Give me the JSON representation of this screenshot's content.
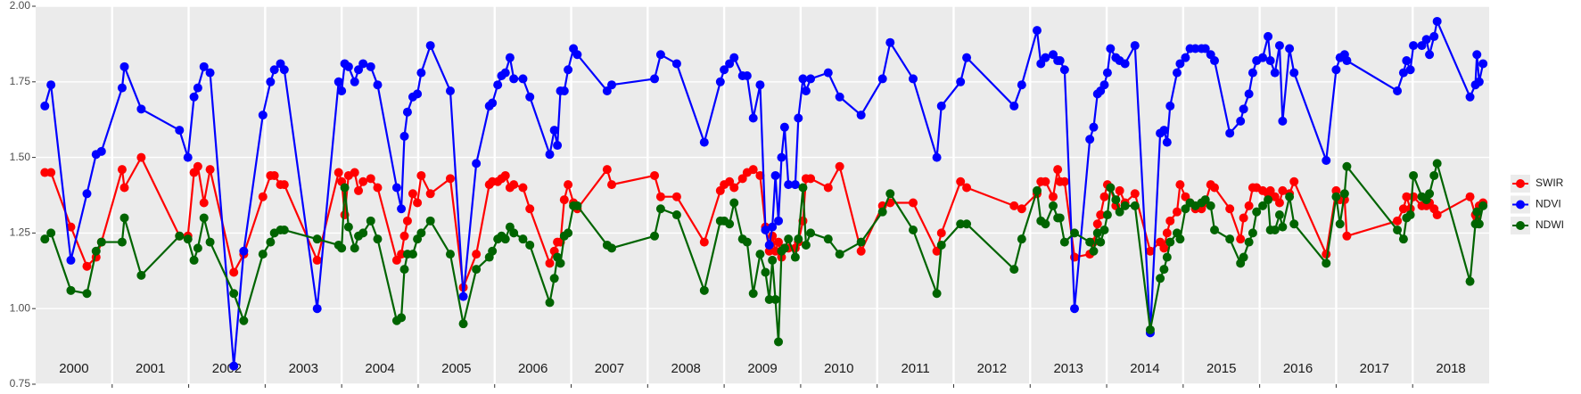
{
  "chart_data": {
    "type": "line",
    "xlim": [
      2000,
      2019
    ],
    "xticks": [
      2001,
      2002,
      2003,
      2004,
      2005,
      2006,
      2007,
      2008,
      2009,
      2010,
      2011,
      2012,
      2013,
      2014,
      2015,
      2016,
      2017,
      2018
    ],
    "year_labels": [
      "2000",
      "2001",
      "2002",
      "2003",
      "2004",
      "2005",
      "2006",
      "2007",
      "2008",
      "2009",
      "2010",
      "2011",
      "2012",
      "2013",
      "2014",
      "2015",
      "2016",
      "2017",
      "2018"
    ],
    "ylim": [
      0.75,
      2.0
    ],
    "yticks": [
      0.75,
      {
        "value": 1.0,
        "label": "1.00"
      },
      1.25,
      {
        "value": 1.5,
        "label": "1.50"
      },
      1.75,
      {
        "value": 2.0,
        "label": "2.00"
      }
    ],
    "grid": true,
    "legend": "right",
    "x": [
      2000.12,
      2000.2,
      2000.46,
      2000.67,
      2000.79,
      2000.86,
      2001.13,
      2001.16,
      2001.38,
      2001.88,
      2001.99,
      2002.07,
      2002.12,
      2002.2,
      2002.28,
      2002.59,
      2002.72,
      2002.97,
      2003.07,
      2003.12,
      2003.2,
      2003.25,
      2003.68,
      2003.96,
      2004.0,
      2004.04,
      2004.09,
      2004.17,
      2004.22,
      2004.28,
      2004.38,
      2004.47,
      2004.72,
      2004.78,
      2004.82,
      2004.86,
      2004.93,
      2004.99,
      2005.04,
      2005.16,
      2005.42,
      2005.59,
      2005.76,
      2005.93,
      2005.97,
      2006.04,
      2006.09,
      2006.14,
      2006.2,
      2006.25,
      2006.37,
      2006.46,
      2006.72,
      2006.78,
      2006.82,
      2006.86,
      2006.91,
      2006.96,
      2007.03,
      2007.08,
      2007.47,
      2007.53,
      2008.09,
      2008.17,
      2008.38,
      2008.74,
      2008.95,
      2009.0,
      2009.07,
      2009.13,
      2009.24,
      2009.3,
      2009.38,
      2009.47,
      2009.54,
      2009.59,
      2009.63,
      2009.67,
      2009.71,
      2009.75,
      2009.79,
      2009.84,
      2009.93,
      2009.97,
      2010.03,
      2010.07,
      2010.13,
      2010.36,
      2010.51,
      2010.79,
      2011.07,
      2011.17,
      2011.47,
      2011.78,
      2011.84,
      2012.09,
      2012.17,
      2012.79,
      2012.89,
      2013.09,
      2013.14,
      2013.2,
      2013.3,
      2013.36,
      2013.39,
      2013.45,
      2013.58,
      2013.78,
      2013.83,
      2013.88,
      2013.92,
      2013.97,
      2014.01,
      2014.05,
      2014.12,
      2014.17,
      2014.24,
      2014.37,
      2014.57,
      2014.7,
      2014.75,
      2014.79,
      2014.83,
      2014.92,
      2014.96,
      2015.03,
      2015.09,
      2015.16,
      2015.24,
      2015.29,
      2015.36,
      2015.41,
      2015.61,
      2015.75,
      2015.79,
      2015.86,
      2015.91,
      2015.96,
      2016.04,
      2016.11,
      2016.14,
      2016.2,
      2016.26,
      2016.3,
      2016.39,
      2016.45,
      2016.87,
      2017.0,
      2017.05,
      2017.11,
      2017.14,
      2017.8,
      2017.88,
      2017.92,
      2017.97,
      2018.01,
      2018.12,
      2018.18,
      2018.22,
      2018.28,
      2018.32,
      2018.75,
      2018.82,
      2018.84,
      2018.87,
      2018.92
    ],
    "series": [
      {
        "name": "SWIR",
        "color": "#ff0000",
        "values": [
          1.45,
          1.45,
          1.27,
          1.14,
          1.17,
          1.22,
          1.46,
          1.4,
          1.5,
          1.24,
          1.24,
          1.45,
          1.47,
          1.35,
          1.46,
          1.12,
          1.18,
          1.37,
          1.44,
          1.44,
          1.41,
          1.41,
          1.16,
          1.45,
          1.42,
          1.31,
          1.44,
          1.45,
          1.39,
          1.42,
          1.43,
          1.4,
          1.16,
          1.18,
          1.24,
          1.29,
          1.38,
          1.35,
          1.44,
          1.38,
          1.43,
          1.07,
          1.18,
          1.41,
          1.42,
          1.42,
          1.43,
          1.44,
          1.4,
          1.41,
          1.4,
          1.33,
          1.15,
          1.19,
          1.22,
          1.22,
          1.36,
          1.41,
          1.35,
          1.33,
          1.46,
          1.41,
          1.44,
          1.37,
          1.37,
          1.22,
          1.39,
          1.41,
          1.42,
          1.4,
          1.43,
          1.45,
          1.46,
          1.44,
          1.27,
          1.19,
          1.24,
          1.19,
          1.22,
          1.17,
          1.2,
          1.2,
          1.2,
          1.22,
          1.29,
          1.43,
          1.43,
          1.4,
          1.47,
          1.19,
          1.34,
          1.35,
          1.35,
          1.19,
          1.25,
          1.42,
          1.4,
          1.34,
          1.33,
          1.38,
          1.42,
          1.42,
          1.37,
          1.46,
          1.42,
          1.42,
          1.17,
          1.18,
          1.22,
          1.28,
          1.31,
          1.37,
          1.41,
          1.4,
          1.34,
          1.39,
          1.35,
          1.38,
          1.19,
          1.22,
          1.2,
          1.25,
          1.29,
          1.32,
          1.41,
          1.37,
          1.35,
          1.33,
          1.33,
          1.35,
          1.41,
          1.4,
          1.33,
          1.23,
          1.3,
          1.34,
          1.4,
          1.4,
          1.39,
          1.38,
          1.39,
          1.37,
          1.35,
          1.39,
          1.38,
          1.42,
          1.18,
          1.39,
          1.36,
          1.36,
          1.24,
          1.29,
          1.33,
          1.37,
          1.33,
          1.37,
          1.34,
          1.34,
          1.35,
          1.33,
          1.31,
          1.37,
          1.31,
          1.3,
          1.34,
          1.35
        ]
      },
      {
        "name": "NDVI",
        "color": "#0000ff",
        "values": [
          1.67,
          1.74,
          1.16,
          1.38,
          1.51,
          1.52,
          1.73,
          1.8,
          1.66,
          1.59,
          1.5,
          1.7,
          1.73,
          1.8,
          1.78,
          0.81,
          1.19,
          1.64,
          1.75,
          1.79,
          1.81,
          1.79,
          1.0,
          1.75,
          1.72,
          1.81,
          1.8,
          1.75,
          1.79,
          1.81,
          1.8,
          1.74,
          1.4,
          1.33,
          1.57,
          1.65,
          1.7,
          1.71,
          1.78,
          1.87,
          1.72,
          1.04,
          1.48,
          1.67,
          1.68,
          1.74,
          1.77,
          1.78,
          1.83,
          1.76,
          1.76,
          1.7,
          1.51,
          1.59,
          1.54,
          1.72,
          1.72,
          1.79,
          1.86,
          1.84,
          1.72,
          1.74,
          1.76,
          1.84,
          1.81,
          1.55,
          1.75,
          1.79,
          1.81,
          1.83,
          1.77,
          1.77,
          1.63,
          1.74,
          1.26,
          1.21,
          1.27,
          1.44,
          1.29,
          1.5,
          1.6,
          1.41,
          1.41,
          1.63,
          1.76,
          1.72,
          1.76,
          1.78,
          1.7,
          1.64,
          1.76,
          1.88,
          1.76,
          1.5,
          1.67,
          1.75,
          1.83,
          1.67,
          1.74,
          1.92,
          1.81,
          1.83,
          1.84,
          1.82,
          1.82,
          1.79,
          1.0,
          1.56,
          1.6,
          1.71,
          1.72,
          1.74,
          1.78,
          1.86,
          1.83,
          1.82,
          1.81,
          1.87,
          0.92,
          1.58,
          1.59,
          1.55,
          1.67,
          1.78,
          1.81,
          1.83,
          1.86,
          1.86,
          1.86,
          1.86,
          1.84,
          1.82,
          1.58,
          1.62,
          1.66,
          1.71,
          1.78,
          1.82,
          1.83,
          1.9,
          1.82,
          1.78,
          1.87,
          1.62,
          1.86,
          1.78,
          1.49,
          1.79,
          1.83,
          1.84,
          1.82,
          1.72,
          1.78,
          1.82,
          1.79,
          1.87,
          1.87,
          1.89,
          1.84,
          1.9,
          1.95,
          1.7,
          1.74,
          1.84,
          1.75,
          1.81
        ]
      },
      {
        "name": "NDWI",
        "color": "#006400",
        "values": [
          1.23,
          1.25,
          1.06,
          1.05,
          1.19,
          1.22,
          1.22,
          1.3,
          1.11,
          1.24,
          1.23,
          1.16,
          1.2,
          1.3,
          1.22,
          1.05,
          0.96,
          1.18,
          1.22,
          1.25,
          1.26,
          1.26,
          1.23,
          1.21,
          1.2,
          1.4,
          1.27,
          1.2,
          1.24,
          1.25,
          1.29,
          1.23,
          0.96,
          0.97,
          1.13,
          1.18,
          1.18,
          1.23,
          1.25,
          1.29,
          1.18,
          0.95,
          1.13,
          1.17,
          1.19,
          1.23,
          1.24,
          1.23,
          1.27,
          1.25,
          1.23,
          1.21,
          1.02,
          1.1,
          1.17,
          1.15,
          1.24,
          1.25,
          1.34,
          1.34,
          1.21,
          1.2,
          1.24,
          1.33,
          1.31,
          1.06,
          1.29,
          1.29,
          1.28,
          1.35,
          1.23,
          1.22,
          1.05,
          1.18,
          1.12,
          1.03,
          1.16,
          1.03,
          0.89,
          1.19,
          1.2,
          1.23,
          1.17,
          1.23,
          1.4,
          1.21,
          1.25,
          1.23,
          1.18,
          1.22,
          1.32,
          1.38,
          1.26,
          1.05,
          1.21,
          1.28,
          1.28,
          1.13,
          1.23,
          1.39,
          1.29,
          1.28,
          1.34,
          1.3,
          1.3,
          1.22,
          1.25,
          1.22,
          1.19,
          1.25,
          1.22,
          1.26,
          1.31,
          1.4,
          1.36,
          1.32,
          1.34,
          1.34,
          0.93,
          1.1,
          1.13,
          1.17,
          1.22,
          1.25,
          1.23,
          1.33,
          1.35,
          1.34,
          1.35,
          1.36,
          1.34,
          1.26,
          1.23,
          1.15,
          1.17,
          1.22,
          1.25,
          1.32,
          1.34,
          1.36,
          1.26,
          1.26,
          1.31,
          1.27,
          1.37,
          1.28,
          1.15,
          1.37,
          1.28,
          1.38,
          1.47,
          1.26,
          1.23,
          1.3,
          1.31,
          1.44,
          1.37,
          1.36,
          1.38,
          1.44,
          1.48,
          1.09,
          1.28,
          1.32,
          1.28,
          1.34
        ]
      }
    ]
  }
}
